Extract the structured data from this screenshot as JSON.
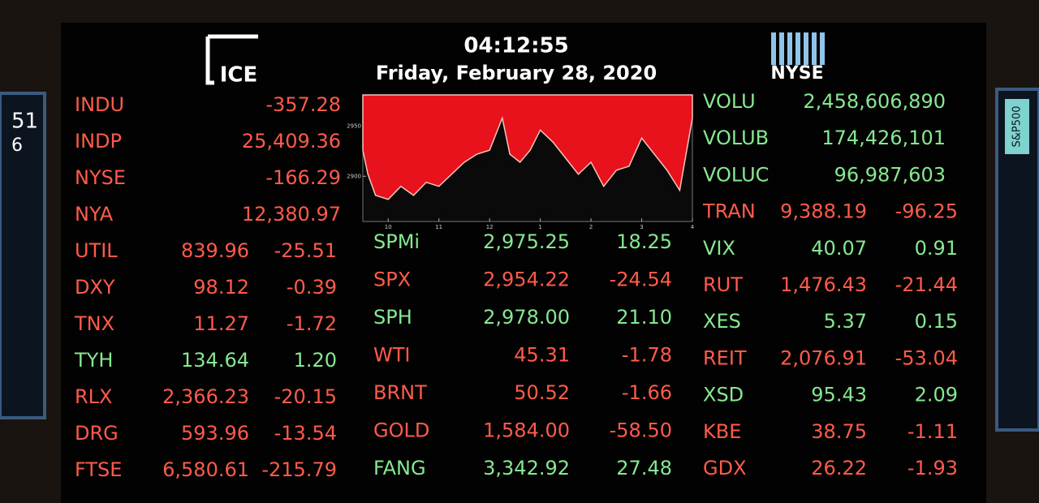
{
  "header": {
    "time": "04:12:55",
    "date": "Friday, February 28, 2020",
    "left_logo": "ICE",
    "right_logo": "NYSE"
  },
  "side": {
    "left": [
      "51",
      "6"
    ],
    "right": "S&P500"
  },
  "boards": [
    {
      "rows": [
        {
          "cells": [
            "INDU",
            "-357.28"
          ],
          "color": "#ff5b4a"
        },
        {
          "cells": [
            "INDP",
            "25,409.36"
          ],
          "color": "#ff5b4a"
        },
        {
          "cells": [
            "NYSE",
            "-166.29"
          ],
          "color": "#ff5b4a"
        },
        {
          "cells": [
            "NYA",
            "12,380.97"
          ],
          "color": "#ff5b4a"
        },
        {
          "cells": [
            "UTIL",
            "839.96",
            "-25.51"
          ],
          "color": "#ff5b4a"
        },
        {
          "cells": [
            "DXY",
            "98.12",
            "-0.39"
          ],
          "color": "#ff5b4a"
        },
        {
          "cells": [
            "TNX",
            "11.27",
            "-1.72"
          ],
          "color": "#ff5b4a"
        },
        {
          "cells": [
            "TYH",
            "134.64",
            "1.20"
          ],
          "color": "#86e890"
        },
        {
          "cells": [
            "RLX",
            "2,366.23",
            "-20.15"
          ],
          "color": "#ff5b4a"
        },
        {
          "cells": [
            "DRG",
            "593.96",
            "-13.54"
          ],
          "color": "#ff5b4a"
        },
        {
          "cells": [
            "FTSE",
            "6,580.61",
            "-215.79"
          ],
          "color": "#ff5b4a"
        }
      ]
    },
    {
      "rows": [
        {
          "cells": [
            "SPMi",
            "2,975.25",
            "18.25"
          ],
          "color": "#86e890"
        },
        {
          "cells": [
            "SPX",
            "2,954.22",
            "-24.54"
          ],
          "color": "#ff5b4a"
        },
        {
          "cells": [
            "SPH",
            "2,978.00",
            "21.10"
          ],
          "color": "#86e890"
        },
        {
          "cells": [
            "WTI",
            "45.31",
            "-1.78"
          ],
          "color": "#ff5b4a"
        },
        {
          "cells": [
            "BRNT",
            "50.52",
            "-1.66"
          ],
          "color": "#ff5b4a"
        },
        {
          "cells": [
            "GOLD",
            "1,584.00",
            "-58.50"
          ],
          "color": "#ff5b4a"
        },
        {
          "cells": [
            "FANG",
            "3,342.92",
            "27.48"
          ],
          "color": "#86e890"
        }
      ]
    },
    {
      "rows": [
        {
          "cells": [
            "VOLU",
            "2,458,606,890"
          ],
          "color": "#86e890"
        },
        {
          "cells": [
            "VOLUB",
            "174,426,101"
          ],
          "color": "#86e890"
        },
        {
          "cells": [
            "VOLUC",
            "96,987,603"
          ],
          "color": "#86e890"
        },
        {
          "cells": [
            "TRAN",
            "9,388.19",
            "-96.25"
          ],
          "color": "#ff5b4a"
        },
        {
          "cells": [
            "VIX",
            "40.07",
            "0.91"
          ],
          "color": "#86e890"
        },
        {
          "cells": [
            "RUT",
            "1,476.43",
            "-21.44"
          ],
          "color": "#ff5b4a"
        },
        {
          "cells": [
            "XES",
            "5.37",
            "0.15"
          ],
          "color": "#86e890"
        },
        {
          "cells": [
            "REIT",
            "2,076.91",
            "-53.04"
          ],
          "color": "#ff5b4a"
        },
        {
          "cells": [
            "XSD",
            "95.43",
            "2.09"
          ],
          "color": "#86e890"
        },
        {
          "cells": [
            "KBE",
            "38.75",
            "-1.11"
          ],
          "color": "#ff5b4a"
        },
        {
          "cells": [
            "GDX",
            "26.22",
            "-1.93"
          ],
          "color": "#ff5b4a"
        }
      ]
    }
  ],
  "chart_data": {
    "type": "area",
    "x": [
      9.5,
      9.6,
      9.75,
      10.0,
      10.25,
      10.5,
      10.75,
      11.0,
      11.25,
      11.5,
      11.75,
      12.0,
      12.25,
      12.4,
      12.6,
      12.8,
      13.0,
      13.25,
      13.5,
      13.75,
      14.0,
      14.25,
      14.5,
      14.75,
      15.0,
      15.25,
      15.5,
      15.75,
      16.0
    ],
    "series": [
      {
        "color": "#e8121c",
        "values": [
          2926,
          2902,
          2881,
          2877,
          2890,
          2881,
          2894,
          2890,
          2902,
          2914,
          2922,
          2926,
          2958,
          2922,
          2914,
          2926,
          2946,
          2934,
          2918,
          2902,
          2914,
          2890,
          2906,
          2910,
          2938,
          2922,
          2906,
          2886,
          2958
        ]
      }
    ],
    "xlim": [
      9.5,
      16
    ],
    "ylim": [
      2855,
      2981
    ],
    "xticks": [
      10,
      11,
      12,
      {
        "value": 13,
        "label": "1"
      },
      {
        "value": 14,
        "label": "2"
      },
      {
        "value": 15,
        "label": "3"
      },
      {
        "value": 16,
        "label": "4"
      }
    ],
    "yticks": [
      2900,
      2950
    ]
  }
}
